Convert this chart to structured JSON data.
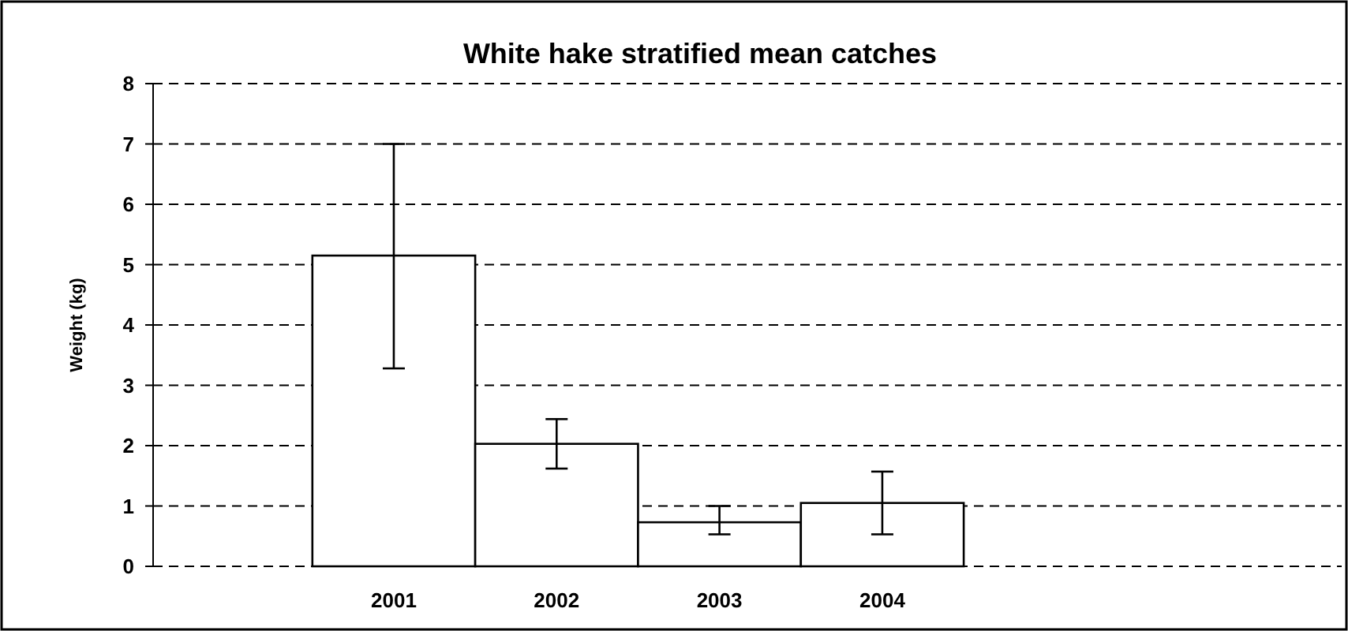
{
  "chart_data": {
    "type": "bar",
    "title": "White hake stratified mean catches",
    "ylabel": "Weight (kg)",
    "categories": [
      "2001",
      "2002",
      "2003",
      "2004"
    ],
    "values": [
      5.15,
      2.03,
      0.73,
      1.05
    ],
    "color": "#ffffff",
    "errors": [
      [
        3.28,
        7.0
      ],
      [
        1.62,
        2.44
      ],
      [
        0.53,
        1.0
      ],
      [
        0.53,
        1.57
      ]
    ],
    "ylim": [
      0,
      8
    ],
    "yticks": [
      0,
      1,
      2,
      3,
      4,
      5,
      6,
      7,
      8
    ],
    "grid": "y",
    "line_style": "dashed"
  }
}
